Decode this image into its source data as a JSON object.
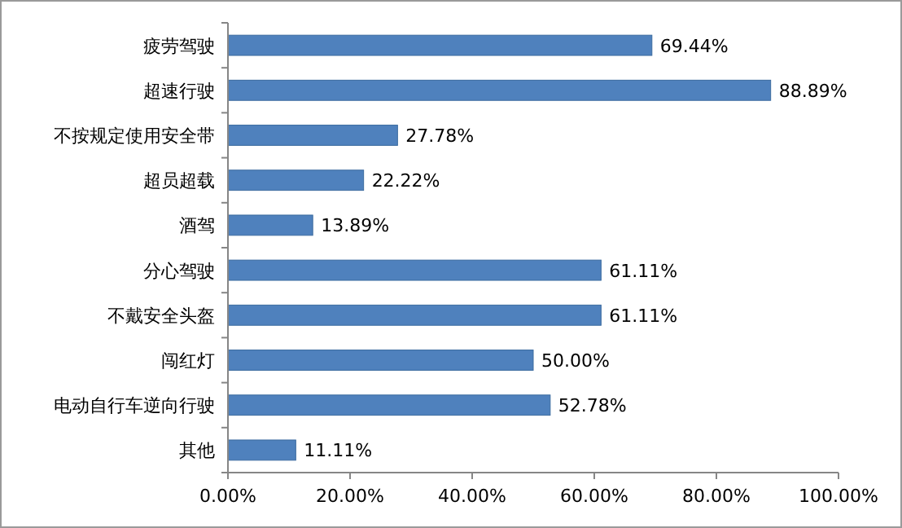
{
  "chart_data": {
    "type": "bar",
    "orientation": "horizontal",
    "categories": [
      "疲劳驾驶",
      "超速行驶",
      "不按规定使用安全带",
      "超员超载",
      "酒驾",
      "分心驾驶",
      "不戴安全头盔",
      "闯红灯",
      "电动自行车逆向行驶",
      "其他"
    ],
    "values": [
      69.44,
      88.89,
      27.78,
      22.22,
      13.89,
      61.11,
      61.11,
      50.0,
      52.78,
      11.11
    ],
    "value_labels": [
      "69.44%",
      "88.89%",
      "27.78%",
      "22.22%",
      "13.89%",
      "61.11%",
      "61.11%",
      "50.00%",
      "52.78%",
      "11.11%"
    ],
    "color": "#4f81bd",
    "xlim": [
      0,
      100
    ],
    "xticks": [
      {
        "value": 0,
        "label": "0.00%"
      },
      {
        "value": 20,
        "label": "20.00%"
      },
      {
        "value": 40,
        "label": "40.00%"
      },
      {
        "value": 60,
        "label": "60.00%"
      },
      {
        "value": 80,
        "label": "80.00%"
      },
      {
        "value": 100,
        "label": "100.00%"
      }
    ],
    "grid": false
  }
}
